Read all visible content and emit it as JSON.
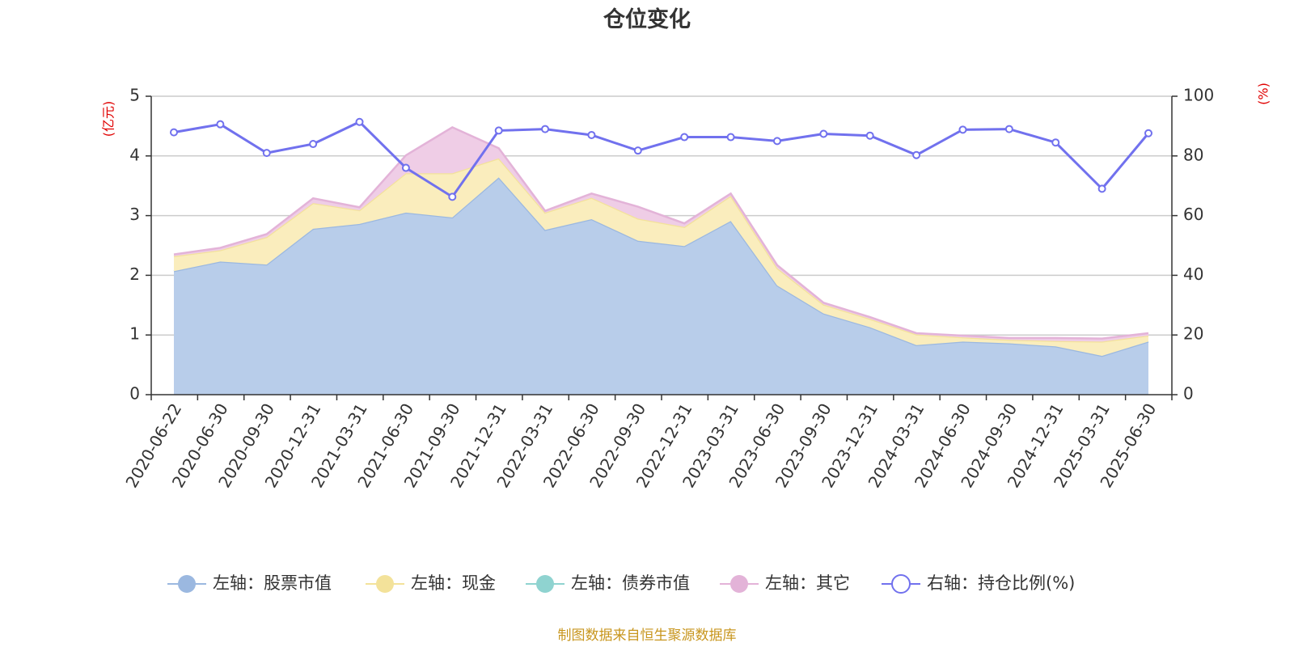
{
  "chart_data": {
    "type": "area",
    "title": "仓位变化",
    "y_left_unit": "(亿元)",
    "y_right_unit": "(%)",
    "ylim_left": [
      0,
      5
    ],
    "ylim_right": [
      0,
      100
    ],
    "y_left_ticks": [
      "0",
      "1",
      "2",
      "3",
      "4",
      "5"
    ],
    "y_right_ticks": [
      "0",
      "20",
      "40",
      "60",
      "80",
      "100"
    ],
    "grid": true,
    "legend_position": "bottom",
    "x": [
      "2020-06-22",
      "2020-06-30",
      "2020-09-30",
      "2020-12-31",
      "2021-03-31",
      "2021-06-30",
      "2021-09-30",
      "2021-12-31",
      "2022-03-31",
      "2022-06-30",
      "2022-09-30",
      "2022-12-31",
      "2023-03-31",
      "2023-06-30",
      "2023-09-30",
      "2023-12-31",
      "2024-03-31",
      "2024-06-30",
      "2024-09-30",
      "2024-12-31",
      "2025-03-31",
      "2025-06-30"
    ],
    "series": [
      {
        "name": "左轴：股票市值",
        "axis": "left",
        "kind": "stacked-area",
        "color": "#9bb8e0",
        "fill": "#b8cdea",
        "values": [
          2.07,
          2.23,
          2.18,
          2.78,
          2.86,
          3.05,
          2.97,
          3.64,
          2.76,
          2.94,
          2.58,
          2.49,
          2.91,
          1.83,
          1.36,
          1.13,
          0.83,
          0.89,
          0.86,
          0.81,
          0.65,
          0.89
        ]
      },
      {
        "name": "左轴：现金",
        "axis": "left",
        "kind": "stacked-area",
        "color": "#f3e29a",
        "fill": "#faedbd",
        "values": [
          0.25,
          0.19,
          0.46,
          0.43,
          0.23,
          0.66,
          0.74,
          0.32,
          0.29,
          0.36,
          0.37,
          0.32,
          0.42,
          0.29,
          0.15,
          0.14,
          0.18,
          0.07,
          0.06,
          0.09,
          0.24,
          0.1
        ]
      },
      {
        "name": "左轴：债券市值",
        "axis": "left",
        "kind": "stacked-area",
        "color": "#8fd3d0",
        "fill": "#b6e3e1",
        "values": [
          0,
          0,
          0,
          0,
          0,
          0,
          0,
          0,
          0,
          0,
          0,
          0,
          0,
          0,
          0,
          0,
          0,
          0,
          0,
          0,
          0,
          0
        ]
      },
      {
        "name": "左轴：其它",
        "axis": "left",
        "kind": "stacked-area",
        "color": "#e3b3d8",
        "fill": "#efcde6",
        "values": [
          0.03,
          0.04,
          0.05,
          0.08,
          0.05,
          0.3,
          0.77,
          0.17,
          0.03,
          0.07,
          0.2,
          0.06,
          0.04,
          0.05,
          0.03,
          0.03,
          0.02,
          0.03,
          0.03,
          0.05,
          0.05,
          0.04
        ]
      },
      {
        "name": "右轴：持仓比例(%)",
        "axis": "right",
        "kind": "line",
        "color": "#7171ee",
        "values": [
          87.9,
          90.6,
          81.0,
          84.0,
          91.4,
          76.0,
          66.3,
          88.5,
          89.0,
          87.0,
          81.8,
          86.3,
          86.3,
          85.0,
          87.4,
          86.8,
          80.3,
          88.8,
          89.0,
          84.5,
          69.0,
          87.6
        ]
      }
    ]
  },
  "source": "制图数据来自恒生聚源数据库"
}
